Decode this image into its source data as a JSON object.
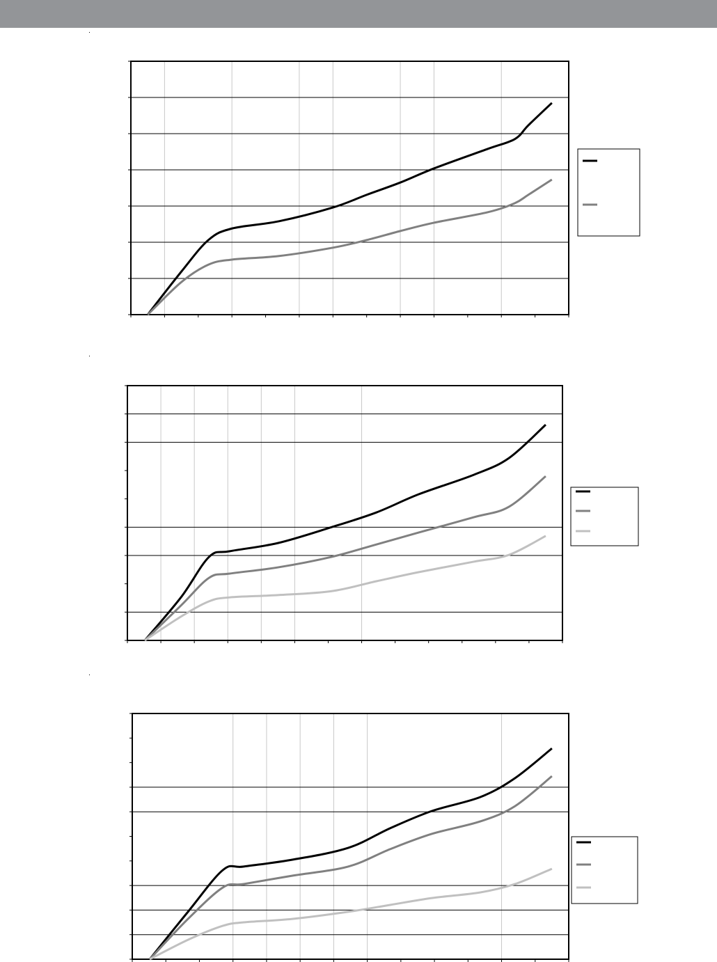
{
  "chart_data": [
    {
      "type": "line",
      "xlim": [
        0,
        13
      ],
      "xticks": [
        0,
        1,
        2,
        3,
        4,
        5,
        6,
        7,
        8,
        9,
        10,
        11,
        12,
        13
      ],
      "ylim": [
        0,
        7
      ],
      "yticks": [
        0,
        1,
        2,
        3,
        4,
        5,
        6,
        7
      ],
      "ygrid": [
        1,
        2,
        3,
        4,
        5,
        6
      ],
      "xgrid": [
        1,
        3,
        5,
        6,
        8,
        9,
        11
      ],
      "series": [
        {
          "color": "#000000",
          "x": [
            0.5,
            1.5,
            2.3,
            3,
            4.4,
            6,
            7,
            8,
            9,
            10.6,
            11.4,
            11.8,
            12.5
          ],
          "values": [
            0,
            1.19,
            2.06,
            2.38,
            2.58,
            2.96,
            3.31,
            3.65,
            4.04,
            4.58,
            4.85,
            5.23,
            5.85
          ]
        },
        {
          "color": "#808080",
          "x": [
            0.5,
            1.5,
            2.3,
            3,
            4.4,
            6,
            7,
            8,
            9,
            10.6,
            11.4,
            11.8,
            12.5
          ],
          "values": [
            0,
            0.9,
            1.38,
            1.52,
            1.62,
            1.85,
            2.06,
            2.31,
            2.54,
            2.83,
            3.08,
            3.31,
            3.73
          ]
        }
      ]
    },
    {
      "type": "line",
      "xlim": [
        0,
        13
      ],
      "xticks": [
        0,
        1,
        2,
        3,
        4,
        5,
        6,
        7,
        8,
        9,
        10,
        11,
        12,
        13
      ],
      "ylim": [
        0,
        9
      ],
      "yticks": [
        0,
        1,
        2,
        3,
        4,
        5,
        6,
        7,
        8,
        9
      ],
      "ygrid": [
        1,
        3,
        4,
        7,
        8
      ],
      "xgrid": [
        1,
        2,
        3,
        4,
        5,
        7
      ],
      "series": [
        {
          "color": "#000000",
          "x": [
            0.52,
            1.6,
            2.44,
            3.06,
            4.5,
            6.1,
            7.44,
            8.7,
            10.35,
            11.4,
            12.5
          ],
          "values": [
            0,
            1.52,
            2.95,
            3.15,
            3.44,
            4.0,
            4.52,
            5.16,
            5.85,
            6.44,
            7.62
          ]
        },
        {
          "color": "#808080",
          "x": [
            0.52,
            1.6,
            2.44,
            3.06,
            4.5,
            6.1,
            7.44,
            8.7,
            10.35,
            11.4,
            12.5
          ],
          "values": [
            0,
            1.23,
            2.21,
            2.36,
            2.58,
            2.95,
            3.39,
            3.81,
            4.35,
            4.72,
            5.8
          ]
        },
        {
          "color": "#c0c0c0",
          "x": [
            0.52,
            1.6,
            2.44,
            3.06,
            4.5,
            6.1,
            7.44,
            8.7,
            10.35,
            11.4,
            12.5
          ],
          "values": [
            0,
            0.84,
            1.38,
            1.52,
            1.6,
            1.74,
            2.09,
            2.41,
            2.78,
            3.02,
            3.69
          ]
        }
      ]
    },
    {
      "type": "line",
      "xlim": [
        0,
        13
      ],
      "xticks": [
        0,
        1,
        2,
        3,
        4,
        5,
        6,
        7,
        8,
        9,
        10,
        11,
        12,
        13
      ],
      "ylim": [
        0,
        10
      ],
      "yticks": [
        0,
        1,
        2,
        3,
        4,
        5,
        6,
        7,
        8,
        9,
        10
      ],
      "ygrid": [
        1,
        2,
        3,
        6,
        7
      ],
      "xgrid": [
        3,
        4,
        5,
        6,
        7,
        11
      ],
      "series": [
        {
          "color": "#000000",
          "x": [
            0.52,
            1.66,
            2.7,
            3.32,
            4.77,
            6.43,
            7.68,
            8.92,
            10.37,
            11.4,
            12.5
          ],
          "values": [
            0,
            1.93,
            3.63,
            3.77,
            4.05,
            4.53,
            5.33,
            6.03,
            6.6,
            7.37,
            8.58
          ]
        },
        {
          "color": "#808080",
          "x": [
            0.52,
            1.66,
            2.7,
            3.32,
            4.77,
            6.43,
            7.68,
            8.92,
            10.37,
            11.4,
            12.5
          ],
          "values": [
            0,
            1.64,
            2.92,
            3.06,
            3.4,
            3.77,
            4.48,
            5.1,
            5.61,
            6.23,
            7.45
          ]
        },
        {
          "color": "#c0c0c0",
          "x": [
            0.52,
            1.66,
            2.7,
            3.32,
            4.77,
            6.43,
            7.68,
            8.92,
            10.37,
            11.4,
            12.5
          ],
          "values": [
            0,
            0.79,
            1.36,
            1.5,
            1.64,
            1.93,
            2.21,
            2.49,
            2.72,
            3.06,
            3.68
          ]
        }
      ]
    }
  ]
}
